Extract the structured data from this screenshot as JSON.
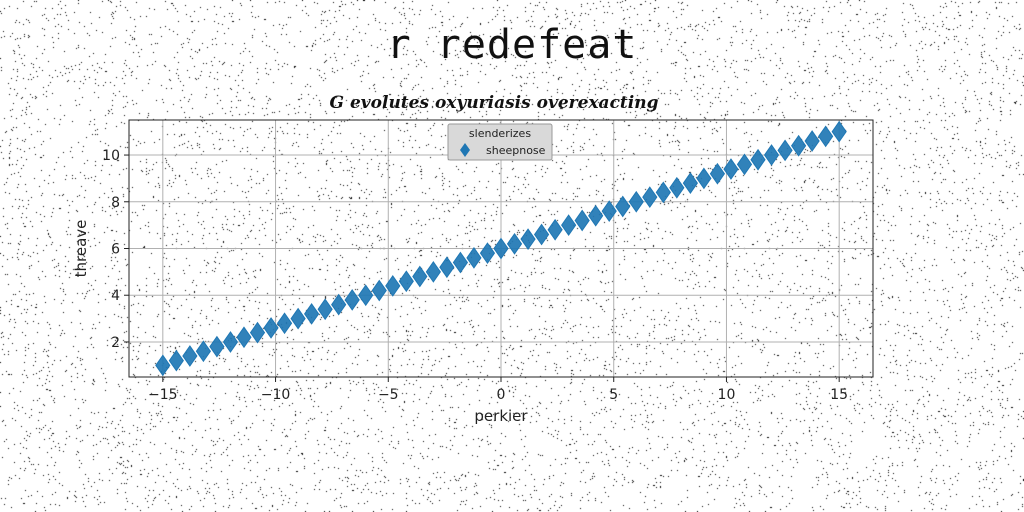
{
  "figure": {
    "title": "r redefeat"
  },
  "chart_data": {
    "type": "scatter",
    "title": "G evolutes oxyuriasis overexacting",
    "xlabel": "perkier",
    "ylabel": "threave",
    "xlim": [
      -16.5,
      16.5
    ],
    "ylim": [
      0.5,
      11.5
    ],
    "xticks": [
      -15,
      -10,
      -5,
      0,
      5,
      10,
      15
    ],
    "xtick_labels": [
      "−15",
      "−10",
      "−5",
      "0",
      "5",
      "10",
      "15"
    ],
    "yticks": [
      2,
      4,
      6,
      8,
      10
    ],
    "ytick_labels": [
      "2",
      "4",
      "6",
      "8",
      "10"
    ],
    "grid": true,
    "legend": {
      "title": "slenderizes",
      "placement": "top-center"
    },
    "series": [
      {
        "name": "sheepnose",
        "marker": "thin-diamond",
        "color": "#1f77b4",
        "x": [
          -15,
          -14.4,
          -13.8,
          -13.2,
          -12.6,
          -12,
          -11.4,
          -10.8,
          -10.2,
          -9.6,
          -9,
          -8.4,
          -7.8,
          -7.2,
          -6.6,
          -6,
          -5.4,
          -4.8,
          -4.2,
          -3.6,
          -3,
          -2.4,
          -1.8,
          -1.2,
          -0.6,
          0,
          0.6,
          1.2,
          1.8,
          2.4,
          3,
          3.6,
          4.2,
          4.8,
          5.4,
          6,
          6.6,
          7.2,
          7.8,
          8.4,
          9,
          9.6,
          10.2,
          10.8,
          11.4,
          12,
          12.6,
          13.2,
          13.8,
          14.4,
          15
        ],
        "y": [
          1,
          1.2,
          1.4,
          1.6,
          1.8,
          2,
          2.2,
          2.4,
          2.6,
          2.8,
          3,
          3.2,
          3.4,
          3.6,
          3.8,
          4,
          4.2,
          4.4,
          4.6,
          4.8,
          5,
          5.2,
          5.4,
          5.6,
          5.8,
          6,
          6.2,
          6.4,
          6.6,
          6.8,
          7,
          7.2,
          7.4,
          7.6,
          7.8,
          8,
          8.2,
          8.4,
          8.6,
          8.8,
          9,
          9.2,
          9.4,
          9.6,
          9.8,
          10,
          10.2,
          10.4,
          10.6,
          10.8,
          11
        ]
      }
    ]
  }
}
